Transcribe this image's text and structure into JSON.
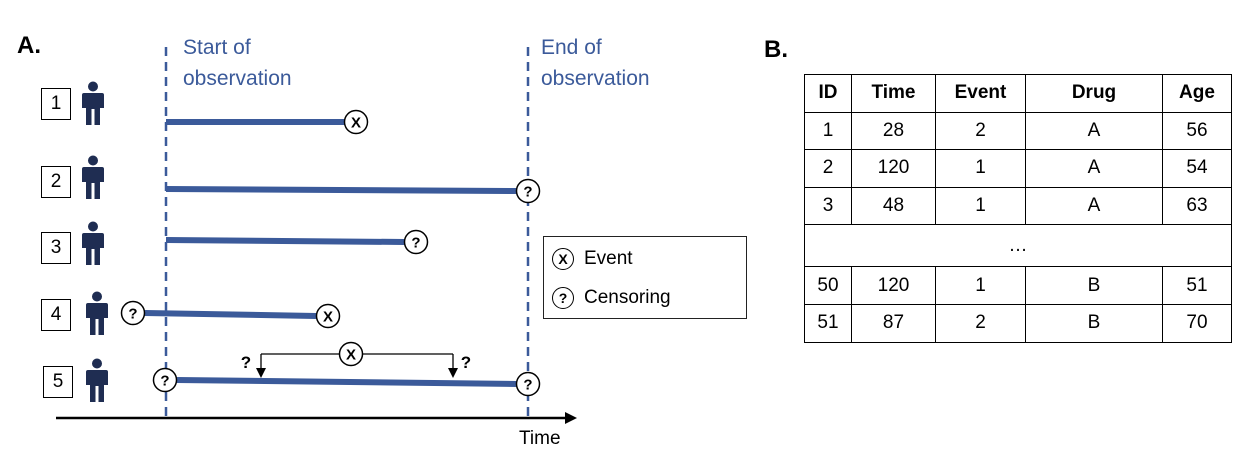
{
  "panel_a_label": "A.",
  "panel_b_label": "B.",
  "start_label": "Start of\nobservation",
  "end_label": "End of\nobservation",
  "time_label": "Time",
  "subjects": [
    "1",
    "2",
    "3",
    "4",
    "5"
  ],
  "event_symbol": "X",
  "censor_symbol": "?",
  "legend": {
    "event": "Event",
    "censoring": "Censoring"
  },
  "colors": {
    "timeline": "#3b5a9a",
    "person": "#1f2d52",
    "guide": "#3b5a9a"
  },
  "table": {
    "headers": [
      "ID",
      "Time",
      "Event",
      "Drug",
      "Age"
    ],
    "rows_top": [
      [
        "1",
        "28",
        "2",
        "A",
        "56"
      ],
      [
        "2",
        "120",
        "1",
        "A",
        "54"
      ],
      [
        "3",
        "48",
        "1",
        "A",
        "63"
      ]
    ],
    "ellipsis": "…",
    "rows_bottom": [
      [
        "50",
        "120",
        "1",
        "B",
        "51"
      ],
      [
        "51",
        "87",
        "2",
        "B",
        "70"
      ]
    ]
  }
}
